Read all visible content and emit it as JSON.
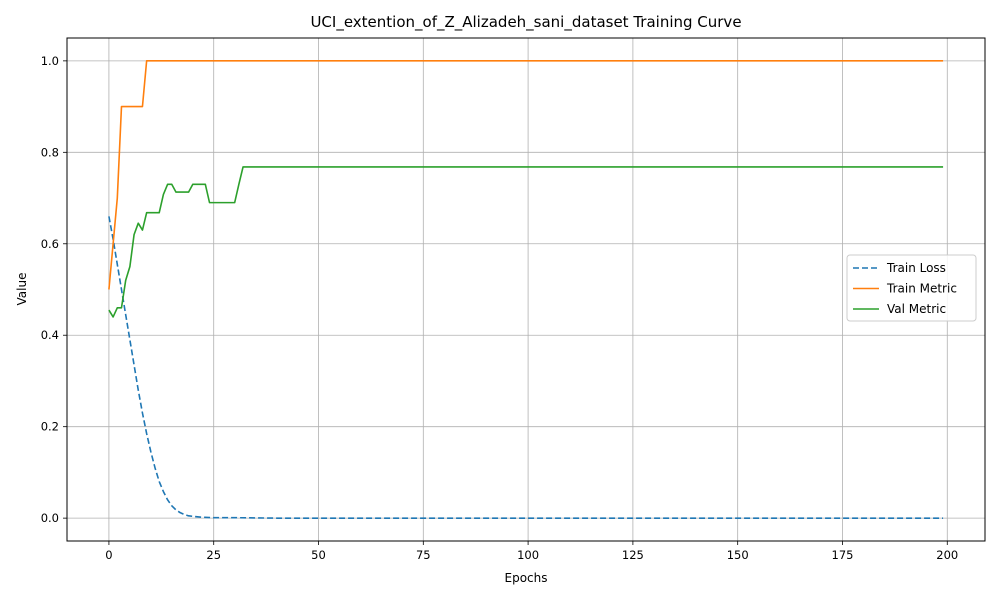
{
  "chart_data": {
    "type": "line",
    "title": "UCI_extention_of_Z_Alizadeh_sani_dataset Training Curve",
    "xlabel": "Epochs",
    "ylabel": "Value",
    "xlim": [
      -10,
      209
    ],
    "ylim": [
      -0.05,
      1.05
    ],
    "xticks": [
      0,
      25,
      50,
      75,
      100,
      125,
      150,
      175,
      200
    ],
    "yticks": [
      0.0,
      0.2,
      0.4,
      0.6,
      0.8,
      1.0
    ],
    "xtick_labels": [
      "0",
      "25",
      "50",
      "75",
      "100",
      "125",
      "150",
      "175",
      "200"
    ],
    "ytick_labels": [
      "0.0",
      "0.2",
      "0.4",
      "0.6",
      "0.8",
      "1.0"
    ],
    "grid": true,
    "legend_position": "center-right",
    "series": [
      {
        "name": "Train Loss",
        "color": "#1f77b4",
        "style": "dashed",
        "x": [
          0,
          1,
          2,
          3,
          4,
          5,
          6,
          7,
          8,
          9,
          10,
          11,
          12,
          13,
          14,
          15,
          16,
          17,
          18,
          19,
          20,
          22,
          25,
          30,
          40,
          60,
          100,
          150,
          199
        ],
        "y": [
          0.66,
          0.61,
          0.555,
          0.5,
          0.445,
          0.39,
          0.335,
          0.28,
          0.23,
          0.185,
          0.145,
          0.11,
          0.08,
          0.058,
          0.04,
          0.027,
          0.018,
          0.012,
          0.008,
          0.005,
          0.004,
          0.002,
          0.001,
          0.001,
          0.0,
          0.0,
          0.0,
          0.0,
          0.0
        ]
      },
      {
        "name": "Train Metric",
        "color": "#ff7f0e",
        "style": "solid",
        "x": [
          0,
          1,
          2,
          3,
          4,
          5,
          6,
          7,
          8,
          9,
          10,
          199
        ],
        "y": [
          0.5,
          0.6,
          0.7,
          0.9,
          0.9,
          0.9,
          0.9,
          0.9,
          0.9,
          1.0,
          1.0,
          1.0
        ]
      },
      {
        "name": "Val Metric",
        "color": "#2ca02c",
        "style": "solid",
        "x": [
          0,
          1,
          2,
          3,
          4,
          5,
          6,
          7,
          8,
          9,
          10,
          11,
          12,
          13,
          14,
          15,
          16,
          17,
          18,
          19,
          20,
          21,
          22,
          23,
          24,
          25,
          26,
          27,
          28,
          29,
          30,
          31,
          32,
          199
        ],
        "y": [
          0.455,
          0.44,
          0.46,
          0.46,
          0.52,
          0.55,
          0.62,
          0.645,
          0.63,
          0.668,
          0.668,
          0.668,
          0.668,
          0.708,
          0.73,
          0.73,
          0.713,
          0.713,
          0.713,
          0.713,
          0.73,
          0.73,
          0.73,
          0.73,
          0.69,
          0.69,
          0.69,
          0.69,
          0.69,
          0.69,
          0.69,
          0.73,
          0.768,
          0.768
        ]
      }
    ]
  }
}
